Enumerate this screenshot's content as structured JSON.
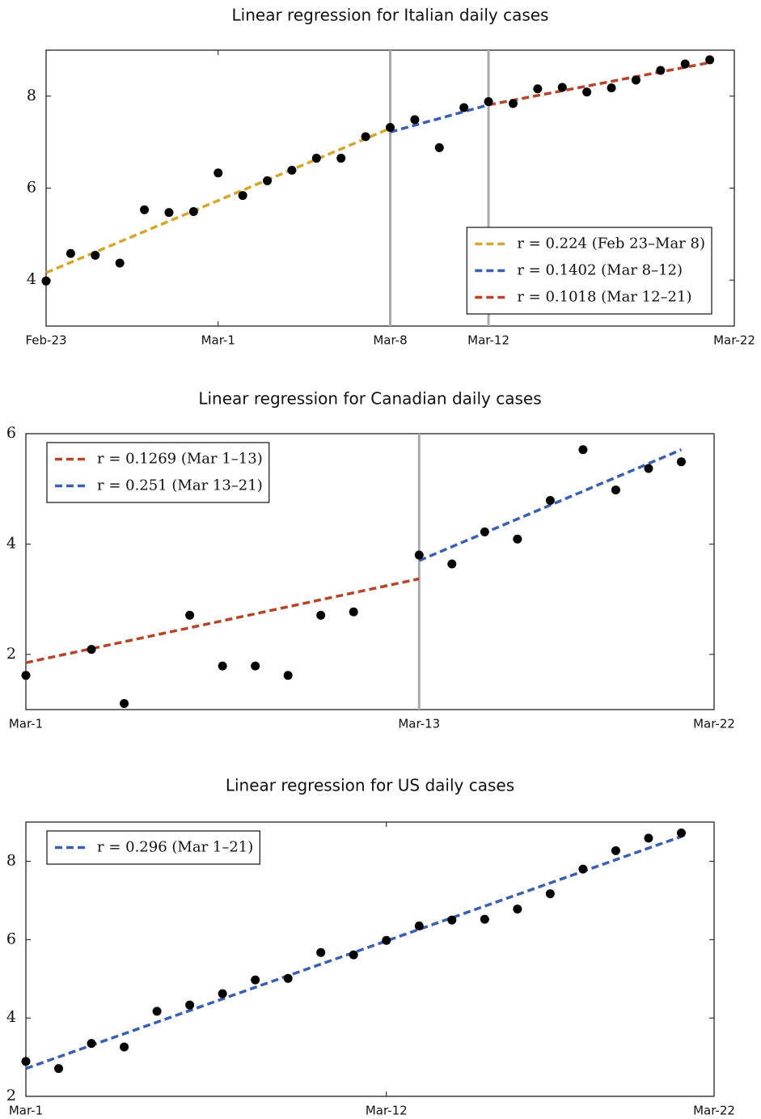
{
  "chart_data": [
    {
      "type": "scatter",
      "title": "Linear regression for Italian daily cases",
      "x": [
        0,
        1,
        2,
        3,
        4,
        5,
        6,
        7,
        8,
        9,
        10,
        11,
        12,
        13,
        14,
        15,
        16,
        17,
        18,
        19,
        20,
        21,
        22,
        23,
        24,
        25,
        26,
        27
      ],
      "values": [
        3.98,
        4.58,
        4.54,
        4.37,
        5.53,
        5.47,
        5.49,
        6.33,
        5.84,
        6.16,
        6.39,
        6.65,
        6.65,
        7.12,
        7.32,
        7.49,
        6.88,
        7.75,
        7.88,
        7.84,
        8.16,
        8.19,
        8.09,
        8.18,
        8.35,
        8.56,
        8.7,
        8.79
      ],
      "color": "#000000",
      "xlim": [
        0,
        28
      ],
      "xticks": [
        {
          "value": 0,
          "label": "Feb-23"
        },
        {
          "value": 7,
          "label": "Mar-1"
        },
        {
          "value": 14,
          "label": "Mar-8"
        },
        {
          "value": 18,
          "label": "Mar-12"
        },
        {
          "value": 28,
          "label": "Mar-22"
        }
      ],
      "ylim": [
        3,
        9
      ],
      "yticks": [
        4,
        6,
        8
      ],
      "vlines": [
        14,
        18
      ],
      "legend": "lower right",
      "fits": [
        {
          "name": "r = 0.224 (Feb 23–Mar 8)",
          "color": "#d4a72c",
          "x": [
            0,
            14
          ],
          "values": [
            4.16,
            7.3
          ]
        },
        {
          "name": "r = 0.1402 (Mar 8–12)",
          "color": "#3a5fb0",
          "x": [
            14,
            18
          ],
          "values": [
            7.22,
            7.81
          ]
        },
        {
          "name": "r = 0.1018 (Mar 12–21)",
          "color": "#b5452a",
          "x": [
            18,
            27
          ],
          "values": [
            7.81,
            8.73
          ]
        }
      ]
    },
    {
      "type": "scatter",
      "title": "Linear regression for Canadian daily cases",
      "x": [
        0,
        2,
        3,
        5,
        6,
        7,
        8,
        9,
        10,
        12,
        13,
        14,
        15,
        16,
        17,
        18,
        19,
        20
      ],
      "values": [
        1.62,
        2.09,
        1.11,
        2.71,
        1.79,
        1.79,
        1.62,
        2.71,
        2.77,
        3.8,
        3.64,
        4.22,
        4.09,
        4.79,
        5.71,
        4.98,
        5.37,
        5.49
      ],
      "color": "#000000",
      "xlim": [
        0,
        21
      ],
      "xticks": [
        {
          "value": 0,
          "label": "Mar-1"
        },
        {
          "value": 12,
          "label": "Mar-13"
        },
        {
          "value": 21,
          "label": "Mar-22"
        }
      ],
      "ylim": [
        1,
        6
      ],
      "yticks": [
        2,
        4,
        6
      ],
      "vlines": [
        12
      ],
      "legend": "upper left",
      "fits": [
        {
          "name": "r = 0.1269 (Mar 1–13)",
          "color": "#b5452a",
          "x": [
            0,
            12
          ],
          "values": [
            1.85,
            3.37
          ]
        },
        {
          "name": "r = 0.251 (Mar 13–21)",
          "color": "#3a5fb0",
          "x": [
            12,
            20
          ],
          "values": [
            3.7,
            5.71
          ]
        }
      ]
    },
    {
      "type": "scatter",
      "title": "Linear regression for US daily cases",
      "x": [
        0,
        1,
        2,
        3,
        4,
        5,
        6,
        7,
        8,
        9,
        10,
        11,
        12,
        13,
        14,
        15,
        16,
        17,
        18,
        19,
        20
      ],
      "values": [
        2.89,
        2.71,
        3.35,
        3.26,
        4.17,
        4.33,
        4.62,
        4.97,
        5.01,
        5.67,
        5.61,
        5.98,
        6.35,
        6.5,
        6.52,
        6.78,
        7.17,
        7.8,
        8.27,
        8.59,
        8.72
      ],
      "color": "#000000",
      "xlim": [
        0,
        21
      ],
      "xticks": [
        {
          "value": 0,
          "label": "Mar-1"
        },
        {
          "value": 11,
          "label": "Mar-12"
        },
        {
          "value": 21,
          "label": "Mar-22"
        }
      ],
      "ylim": [
        2,
        9
      ],
      "yticks": [
        2,
        4,
        6,
        8
      ],
      "vlines": [],
      "legend": "upper left",
      "fits": [
        {
          "name": "r = 0.296 (Mar 1–21)",
          "color": "#3a5fb0",
          "x": [
            0,
            20
          ],
          "values": [
            2.71,
            8.63
          ]
        }
      ]
    }
  ]
}
